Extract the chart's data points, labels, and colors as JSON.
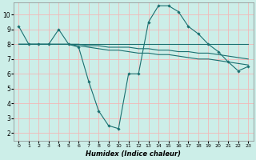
{
  "xlabel": "Humidex (Indice chaleur)",
  "xlim": [
    -0.5,
    23.5
  ],
  "ylim": [
    1.5,
    10.8
  ],
  "yticks": [
    2,
    3,
    4,
    5,
    6,
    7,
    8,
    9,
    10
  ],
  "xticks": [
    0,
    1,
    2,
    3,
    4,
    5,
    6,
    7,
    8,
    9,
    10,
    11,
    12,
    13,
    14,
    15,
    16,
    17,
    18,
    19,
    20,
    21,
    22,
    23
  ],
  "bg_color": "#cceee8",
  "grid_color": "#f2b8b8",
  "line_color": "#1a7070",
  "jagged_x": [
    0,
    1,
    2,
    3,
    4,
    5,
    6,
    7,
    8,
    9,
    10,
    11,
    12,
    13,
    14,
    15,
    16,
    17,
    18,
    19,
    20,
    21,
    22,
    23
  ],
  "jagged_y": [
    9.2,
    8.0,
    8.0,
    8.0,
    9.0,
    8.0,
    7.8,
    5.5,
    3.5,
    2.5,
    2.3,
    6.0,
    6.0,
    9.5,
    10.6,
    10.6,
    10.2,
    9.2,
    8.7,
    8.0,
    7.5,
    6.8,
    6.2,
    6.5
  ],
  "flat_line": [
    8.0,
    8.0,
    8.0,
    8.0,
    8.0,
    8.0,
    8.0,
    8.0,
    8.0,
    8.0,
    8.0,
    8.0,
    8.0,
    8.0,
    8.0,
    8.0,
    8.0,
    8.0,
    8.0,
    8.0,
    8.0,
    8.0,
    8.0,
    8.0
  ],
  "decline1": [
    8.0,
    8.0,
    8.0,
    8.0,
    8.0,
    8.0,
    8.0,
    7.9,
    7.9,
    7.8,
    7.8,
    7.8,
    7.7,
    7.7,
    7.6,
    7.6,
    7.5,
    7.5,
    7.4,
    7.4,
    7.3,
    7.2,
    7.1,
    7.0
  ],
  "decline2": [
    8.0,
    8.0,
    8.0,
    8.0,
    8.0,
    8.0,
    7.9,
    7.8,
    7.7,
    7.6,
    7.6,
    7.5,
    7.4,
    7.4,
    7.3,
    7.3,
    7.2,
    7.1,
    7.0,
    7.0,
    6.9,
    6.8,
    6.7,
    6.6
  ]
}
